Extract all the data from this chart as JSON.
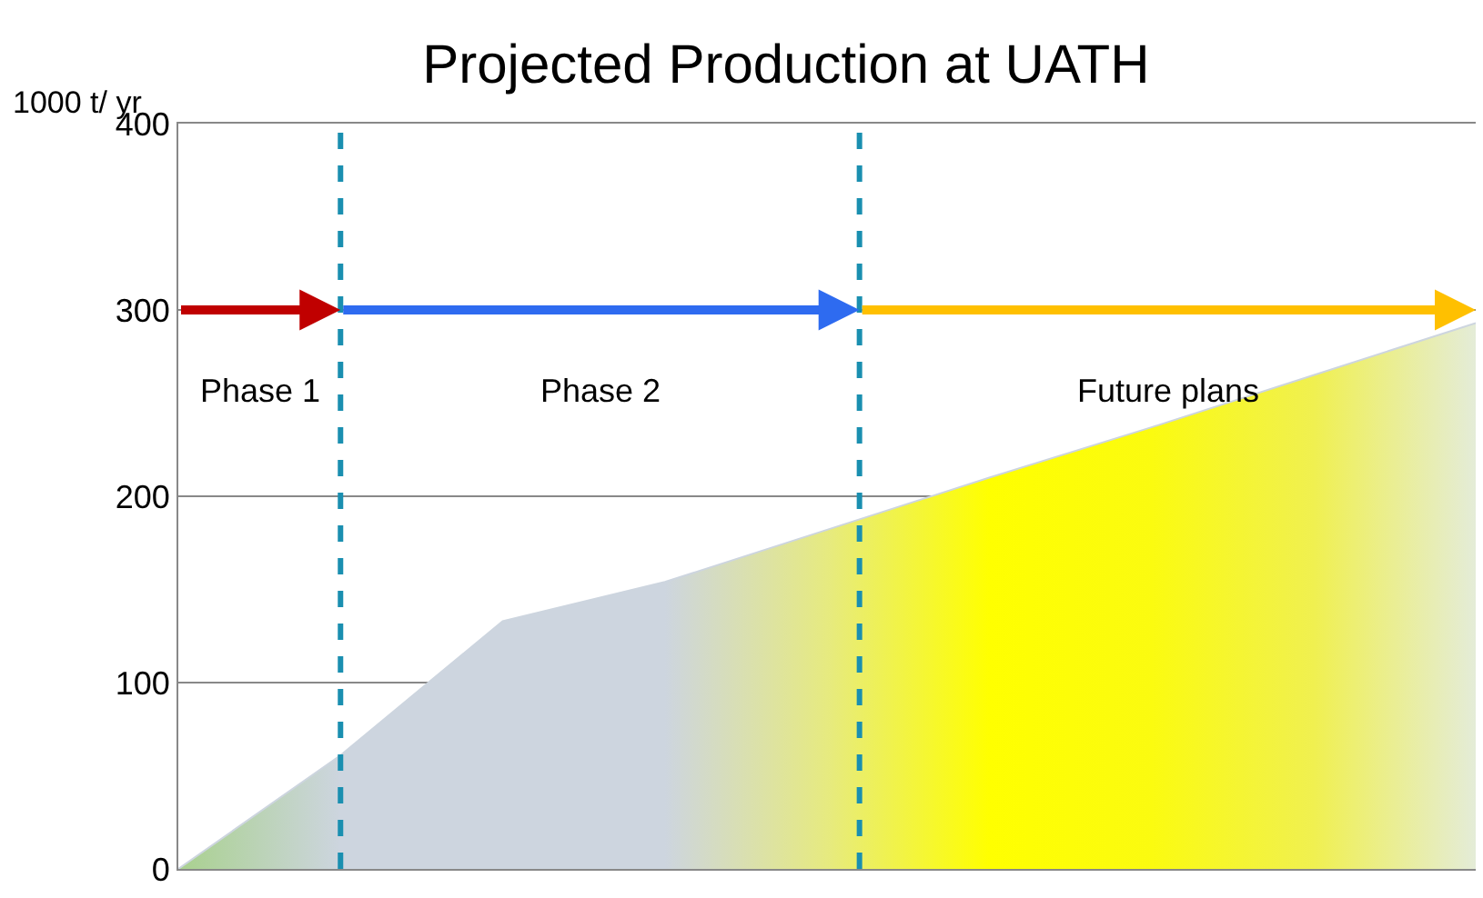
{
  "chart_data": {
    "type": "area",
    "title": "Projected Production at UATH",
    "ylabel": "1000 t/ yr",
    "categories": [
      null,
      null,
      null,
      null,
      null,
      null,
      null,
      null,
      null
    ],
    "ylim": [
      0,
      400
    ],
    "yticks": [
      0,
      100,
      200,
      300,
      400
    ],
    "tick_labels": "y",
    "grid": "y",
    "series": [
      {
        "color": "#cdd5df",
        "colors": [
          "#a9d18e",
          "#cdd5df",
          "#cdd5df",
          "#cdd5df",
          "#e6ea80",
          "#ffff00",
          "#fbfb10",
          "#f0f050",
          "#e4ecd8"
        ],
        "values": [
          0,
          61,
          133,
          154,
          182,
          210,
          237,
          265,
          293
        ]
      }
    ],
    "annotations": [
      "Phase 1",
      "Phase 2",
      "Future plans"
    ]
  }
}
